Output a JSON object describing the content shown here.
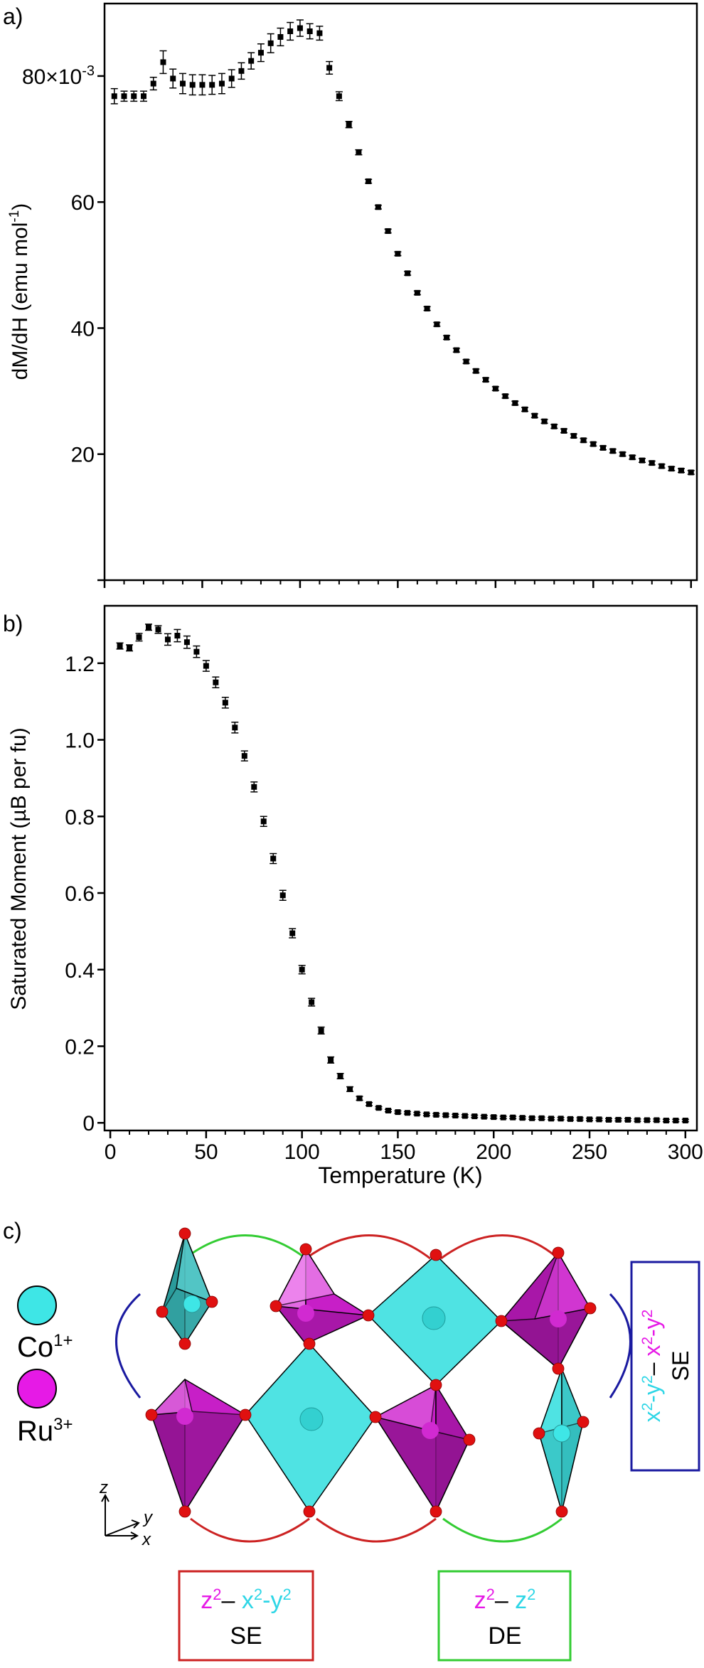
{
  "panels": {
    "a_label": "a)",
    "b_label": "b)",
    "c_label": "c)"
  },
  "chart_data": [
    {
      "type": "scatter",
      "panel": "a)",
      "xlabel": "",
      "ylabel_main": "dM/dH (emu mol",
      "ylabel_sup": "-1",
      "ylabel_end": ")",
      "ylim": [
        0,
        0.0915
      ],
      "xlim": [
        0,
        303
      ],
      "yticks": [
        {
          "value": 0.02,
          "label": "20"
        },
        {
          "value": 0.04,
          "label": "40"
        },
        {
          "value": 0.06,
          "label": "60"
        },
        {
          "value": 0.08,
          "label": "80×10",
          "sup": "-3"
        }
      ],
      "xticks": [
        0,
        50,
        100,
        150,
        200,
        250,
        300
      ],
      "show_xtick_labels": false,
      "markers": "square",
      "error_bars": true,
      "x": [
        5,
        10,
        15,
        20,
        25,
        30,
        35,
        40,
        45,
        50,
        55,
        60,
        65,
        70,
        75,
        80,
        85,
        90,
        95,
        100,
        105,
        110,
        115,
        120,
        125,
        130,
        135,
        140,
        145,
        150,
        155,
        160,
        165,
        170,
        175,
        180,
        185,
        190,
        195,
        200,
        205,
        210,
        215,
        220,
        225,
        230,
        235,
        240,
        245,
        250,
        255,
        260,
        265,
        270,
        275,
        280,
        285,
        290,
        295,
        300
      ],
      "y": [
        0.0768,
        0.0768,
        0.0768,
        0.0768,
        0.0788,
        0.0822,
        0.0796,
        0.0788,
        0.0786,
        0.0786,
        0.0786,
        0.0788,
        0.0796,
        0.0808,
        0.0824,
        0.0837,
        0.0852,
        0.0862,
        0.0871,
        0.0876,
        0.0871,
        0.0868,
        0.0813,
        0.0768,
        0.0723,
        0.0679,
        0.0633,
        0.0592,
        0.0554,
        0.0518,
        0.0487,
        0.0456,
        0.0431,
        0.0406,
        0.0385,
        0.0365,
        0.0347,
        0.0332,
        0.0318,
        0.0304,
        0.0292,
        0.0281,
        0.0271,
        0.0261,
        0.0252,
        0.0244,
        0.0237,
        0.0229,
        0.0222,
        0.0216,
        0.021,
        0.0205,
        0.02,
        0.0195,
        0.019,
        0.0186,
        0.0181,
        0.0177,
        0.0174,
        0.0171
      ],
      "err": [
        0.0012,
        0.0008,
        0.0008,
        0.0008,
        0.001,
        0.0018,
        0.0015,
        0.0016,
        0.0016,
        0.0016,
        0.0015,
        0.0016,
        0.0014,
        0.0013,
        0.0013,
        0.0014,
        0.0015,
        0.0014,
        0.0014,
        0.0013,
        0.0012,
        0.0011,
        0.001,
        0.0007,
        0.0005,
        0.0004,
        0.0003,
        0.0003,
        0.0003,
        0.0003,
        0.0003,
        0.0003,
        0.0003,
        0.0003,
        0.0003,
        0.0003,
        0.0003,
        0.0003,
        0.0003,
        0.0003,
        0.0003,
        0.0003,
        0.0003,
        0.0003,
        0.0003,
        0.0003,
        0.0003,
        0.0003,
        0.0003,
        0.0003,
        0.0003,
        0.0003,
        0.0003,
        0.0003,
        0.0003,
        0.0003,
        0.0003,
        0.0003,
        0.0003,
        0.0003
      ]
    },
    {
      "type": "scatter",
      "panel": "b)",
      "xlabel": "Temperature (K)",
      "ylabel": "Saturated Moment (µB per fu)",
      "ylim": [
        -0.02,
        1.35
      ],
      "xlim": [
        -3,
        306
      ],
      "yticks": [
        0,
        0.2,
        0.4,
        0.6,
        0.8,
        1.0,
        1.2
      ],
      "ytick_labels": [
        "0",
        "0.2",
        "0.4",
        "0.6",
        "0.8",
        "1.0",
        "1.2"
      ],
      "xticks": [
        0,
        50,
        100,
        150,
        200,
        250,
        300
      ],
      "xtick_labels": [
        "0",
        "50",
        "100",
        "150",
        "200",
        "250",
        "300"
      ],
      "markers": "square",
      "error_bars": true,
      "x": [
        5,
        10,
        15,
        20,
        25,
        30,
        35,
        40,
        45,
        50,
        55,
        60,
        65,
        70,
        75,
        80,
        85,
        90,
        95,
        100,
        105,
        110,
        115,
        120,
        125,
        130,
        135,
        140,
        145,
        150,
        155,
        160,
        165,
        170,
        175,
        180,
        185,
        190,
        195,
        200,
        205,
        210,
        215,
        220,
        225,
        230,
        235,
        240,
        245,
        250,
        255,
        260,
        265,
        270,
        275,
        280,
        285,
        290,
        295,
        300
      ],
      "y": [
        1.245,
        1.24,
        1.268,
        1.294,
        1.288,
        1.262,
        1.272,
        1.255,
        1.23,
        1.193,
        1.15,
        1.097,
        1.032,
        0.958,
        0.877,
        0.787,
        0.69,
        0.594,
        0.495,
        0.4,
        0.315,
        0.241,
        0.164,
        0.122,
        0.088,
        0.064,
        0.049,
        0.039,
        0.032,
        0.028,
        0.026,
        0.024,
        0.022,
        0.021,
        0.02,
        0.019,
        0.018,
        0.017,
        0.016,
        0.015,
        0.014,
        0.014,
        0.013,
        0.012,
        0.012,
        0.011,
        0.011,
        0.01,
        0.01,
        0.009,
        0.009,
        0.008,
        0.008,
        0.008,
        0.007,
        0.007,
        0.007,
        0.006,
        0.006,
        0.006
      ],
      "err": [
        0.008,
        0.008,
        0.01,
        0.008,
        0.01,
        0.015,
        0.016,
        0.016,
        0.015,
        0.014,
        0.014,
        0.014,
        0.014,
        0.013,
        0.013,
        0.013,
        0.013,
        0.013,
        0.012,
        0.011,
        0.01,
        0.009,
        0.008,
        0.007,
        0.006,
        0.005,
        0.004,
        0.003,
        0.003,
        0.003,
        0.003,
        0.003,
        0.003,
        0.003,
        0.003,
        0.003,
        0.003,
        0.003,
        0.003,
        0.003,
        0.003,
        0.003,
        0.003,
        0.003,
        0.003,
        0.003,
        0.003,
        0.003,
        0.003,
        0.003,
        0.003,
        0.003,
        0.003,
        0.003,
        0.003,
        0.003,
        0.003,
        0.003,
        0.003,
        0.003
      ]
    }
  ],
  "structure": {
    "legend": [
      {
        "label": "Co",
        "sup": "1+",
        "color": "#3ee6e6"
      },
      {
        "label": "Ru",
        "sup": "3+",
        "color": "#e61ae6"
      }
    ],
    "axes": {
      "z": "z",
      "y": "y",
      "x": "x"
    },
    "colors": {
      "co": "#4fe3e3",
      "co_dark": "#2a9a9a",
      "ru_light": "#e36ae3",
      "ru_mid": "#c71fc7",
      "ru_dark": "#8e148e",
      "oxygen": "#e01010",
      "arc_green": "#33cc33",
      "arc_red": "#cc2222",
      "arc_blue": "#1a1aa0",
      "label_magenta": "#e61ae6",
      "label_cyan": "#2ed6e6"
    },
    "box_se_bottom": {
      "line1_a": "z",
      "line1_a_sup": "2",
      "line1_dash": "– ",
      "line1_b": "x",
      "line1_b_sup1": "2",
      "line1_b_mid": "-y",
      "line1_b_sup2": "2",
      "line2": "SE"
    },
    "box_de": {
      "line1_a": "z",
      "line1_a_sup": "2",
      "line1_dash": "– ",
      "line1_b": "z",
      "line1_b_sup": "2",
      "line2": "DE"
    },
    "box_se_right": {
      "line1_a": "x",
      "line1_a_sup1": "2",
      "line1_a_mid": "-y",
      "line1_a_sup2": "2",
      "line1_dash": "– ",
      "line1_b": "x",
      "line1_b_sup1": "2",
      "line1_b_mid": "-y",
      "line1_b_sup2": "2",
      "line2": "SE"
    }
  }
}
